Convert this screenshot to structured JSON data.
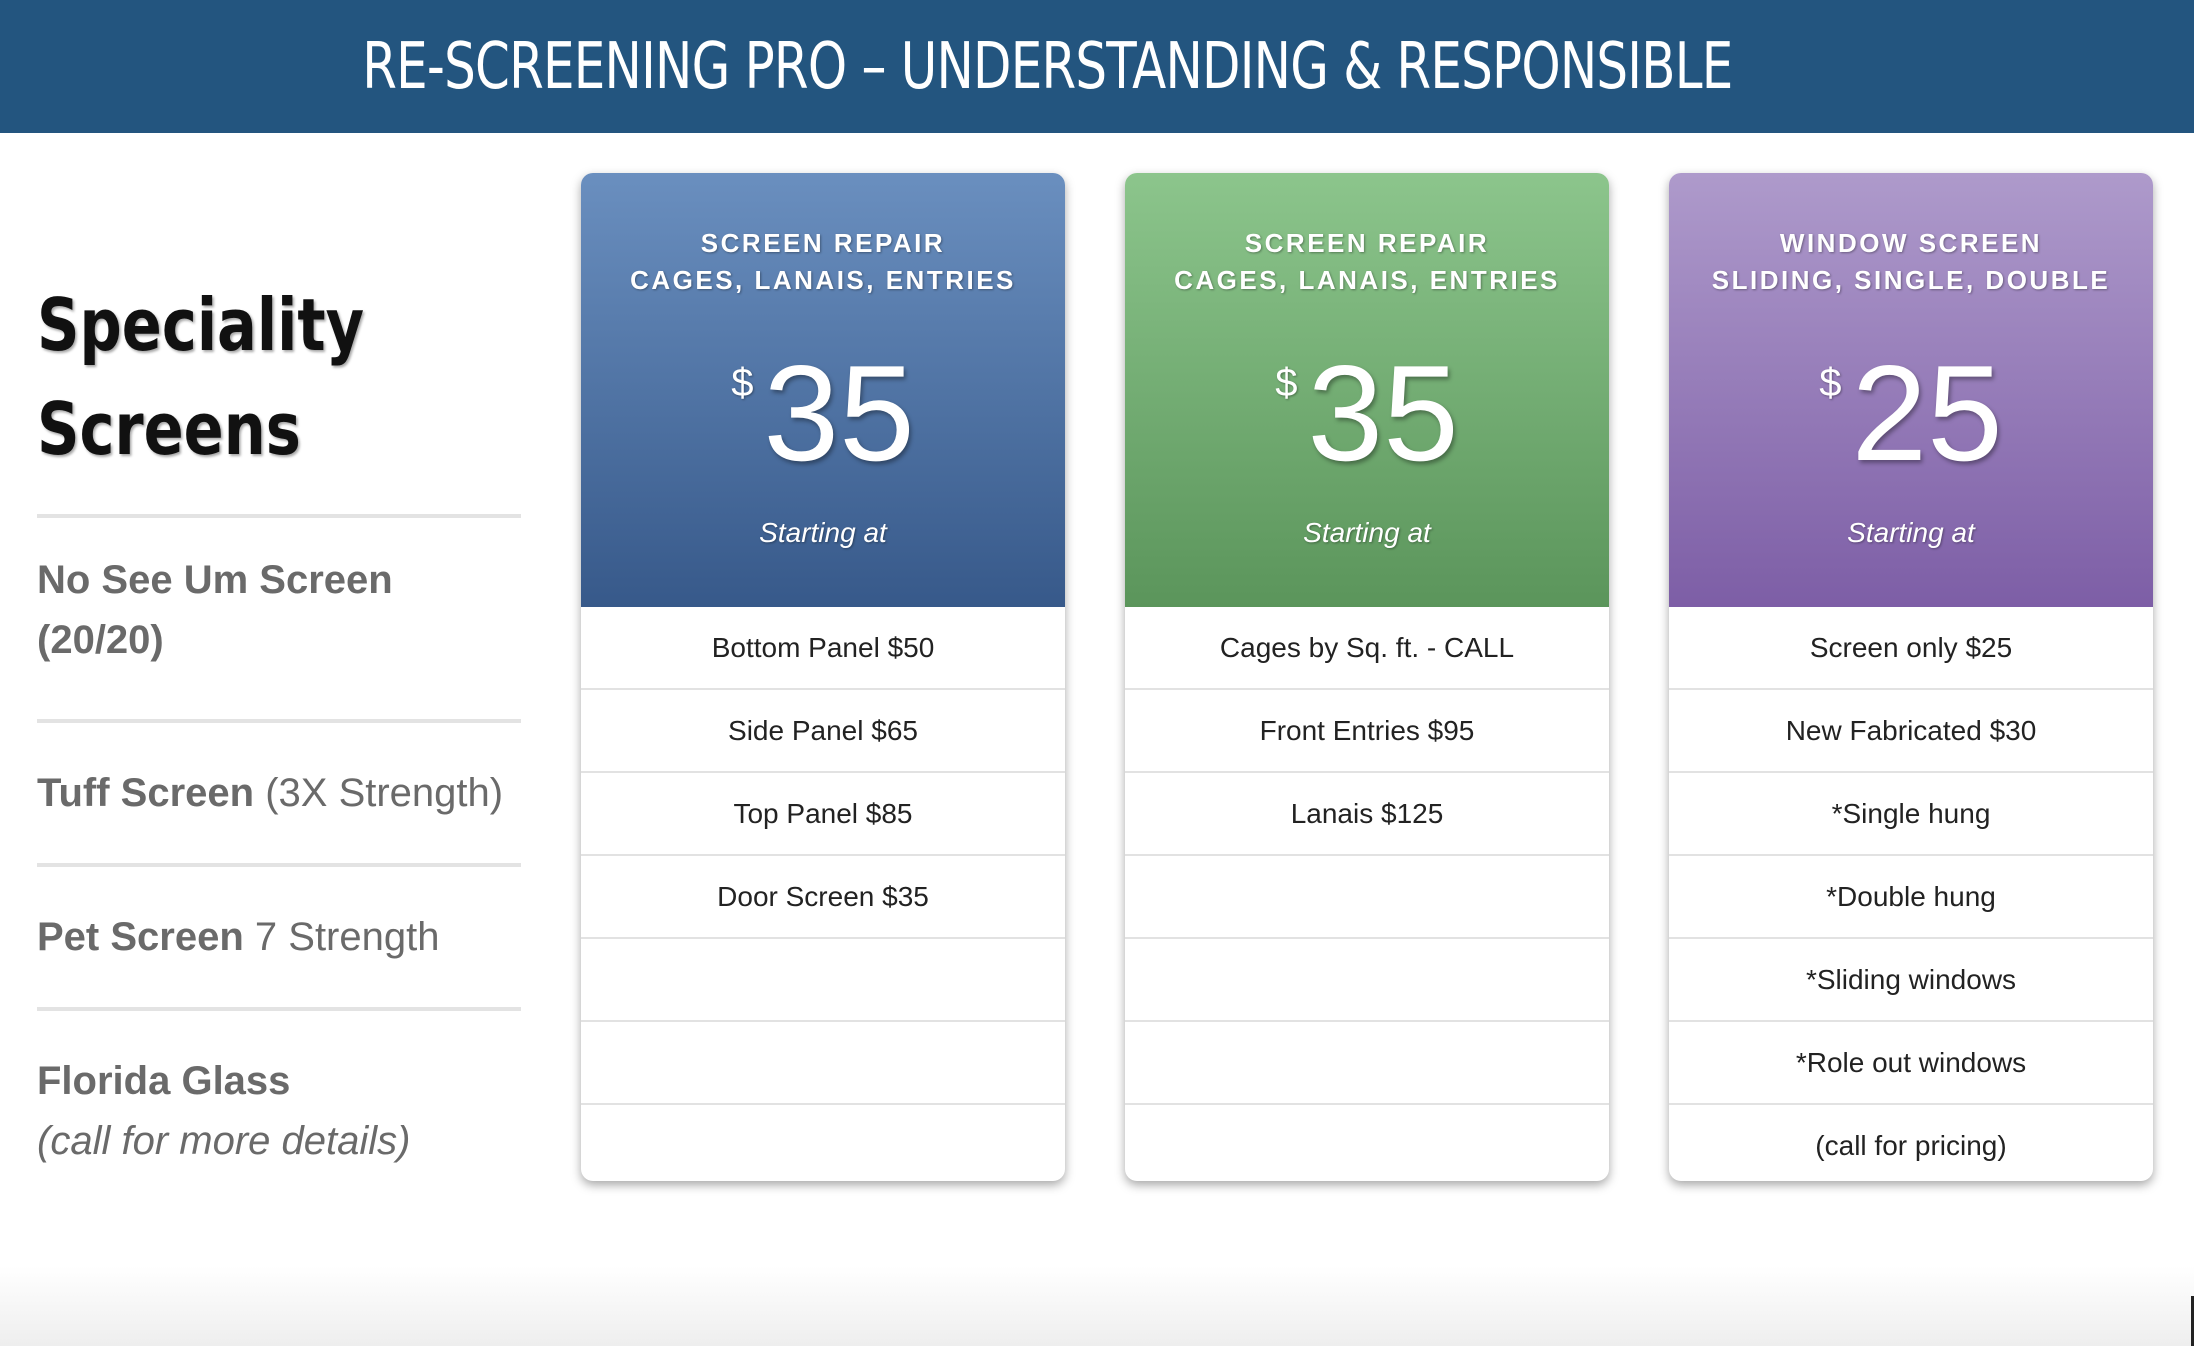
{
  "header": {
    "title": "RE-SCREENING PRO – UNDERSTANDING & RESPONSIBLE"
  },
  "left": {
    "title_line1": "Speciality",
    "title_line2": "Screens",
    "items": [
      {
        "bold": "No See Um Screen",
        "second": "(20/20)"
      },
      {
        "bold": "Tuff Screen",
        "light": "(3X Strength)"
      },
      {
        "bold": "Pet Screen",
        "light": "7 Strength"
      },
      {
        "bold": "Florida Glass",
        "italic": "(call for more details)"
      }
    ]
  },
  "cards": [
    {
      "line1": "SCREEN REPAIR",
      "line2": "CAGES, LANAIS, ENTRIES",
      "currency": "$",
      "price": "35",
      "starting": "Starting at",
      "rows": [
        "Bottom Panel $50",
        "Side Panel $65",
        "Top Panel $85",
        "Door Screen $35",
        "",
        "",
        ""
      ]
    },
    {
      "line1": "SCREEN REPAIR",
      "line2": "CAGES, LANAIS, ENTRIES",
      "currency": "$",
      "price": "35",
      "starting": "Starting at",
      "rows": [
        "Cages by Sq. ft. - CALL",
        "Front Entries $95",
        "Lanais $125",
        "",
        "",
        "",
        ""
      ]
    },
    {
      "line1": "WINDOW SCREEN",
      "line2": "SLIDING, SINGLE, DOUBLE",
      "currency": "$",
      "price": "25",
      "starting": "Starting at",
      "rows": [
        "Screen only $25",
        "New Fabricated $30",
        "*Single hung",
        "*Double hung",
        "*Sliding windows",
        "*Role out windows",
        "(call for pricing)"
      ]
    }
  ],
  "colors": {
    "header": "#23557f",
    "blue": "#4a6fa1",
    "green": "#6fab6f",
    "purple": "#9a7fbe"
  }
}
